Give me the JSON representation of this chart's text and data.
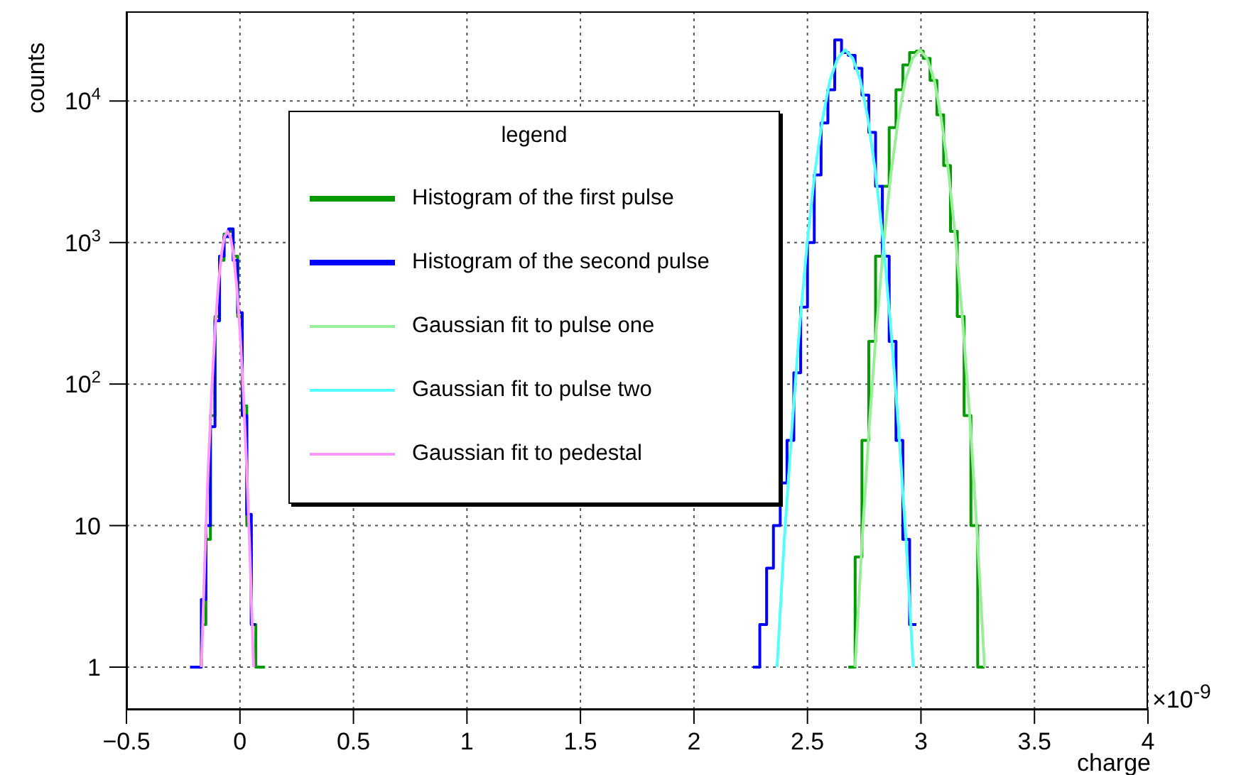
{
  "chart_data": {
    "type": "line",
    "xlabel": "charge",
    "ylabel": "counts",
    "legend_title": "legend",
    "annotations": [
      "×10$^{-9}$"
    ],
    "xlim": [
      -0.5,
      4
    ],
    "xticks": [
      {
        "value": -0.5,
        "label": "−0.5"
      },
      0,
      0.5,
      1,
      1.5,
      2,
      2.5,
      3,
      3.5,
      4
    ],
    "ylim": [
      0.5,
      43000
    ],
    "yticks": [
      1,
      10,
      {
        "value": 100,
        "label": "10$^{2}$"
      },
      {
        "value": 1000,
        "label": "10$^{3}$"
      },
      {
        "value": 10000,
        "label": "10$^{4}$"
      }
    ],
    "log": "y",
    "grid": true,
    "legend": "top left",
    "series": [
      {
        "name": "Histogram of the first pulse",
        "type": "step",
        "color": "#009900",
        "x": [
          -0.17,
          -0.15,
          -0.13,
          -0.11,
          -0.09,
          -0.07,
          -0.05,
          -0.03,
          -0.01,
          0.01,
          0.03,
          0.05,
          0.07,
          0.11,
          1.0,
          2.68,
          2.71,
          2.74,
          2.77,
          2.8,
          2.83,
          2.86,
          2.89,
          2.92,
          2.95,
          2.98,
          3.01,
          3.04,
          3.07,
          3.1,
          3.13,
          3.16,
          3.19,
          3.22,
          3.25,
          3.28
        ],
        "values": [
          2,
          8,
          60,
          300,
          750,
          1150,
          1200,
          800,
          300,
          70,
          10,
          2,
          1,
          1,
          null,
          1,
          6,
          40,
          200,
          800,
          2500,
          6500,
          12000,
          18000,
          22000,
          22500,
          20000,
          14000,
          8000,
          3500,
          1200,
          300,
          60,
          10,
          1,
          1
        ]
      },
      {
        "name": "Histogram of the second pulse",
        "type": "step",
        "color": "#0000ff",
        "x": [
          -0.22,
          -0.17,
          -0.15,
          -0.13,
          -0.11,
          -0.09,
          -0.07,
          -0.05,
          -0.03,
          -0.01,
          0.01,
          0.03,
          0.05,
          0.07,
          1.0,
          2.26,
          2.29,
          2.32,
          2.35,
          2.38,
          2.41,
          2.44,
          2.47,
          2.5,
          2.53,
          2.56,
          2.59,
          2.62,
          2.65,
          2.68,
          2.71,
          2.74,
          2.77,
          2.8,
          2.83,
          2.86,
          2.89,
          2.92,
          2.95,
          2.98
        ],
        "values": [
          1,
          3,
          10,
          50,
          280,
          800,
          1100,
          1250,
          750,
          320,
          60,
          12,
          2,
          2,
          null,
          1,
          2,
          5,
          10,
          20,
          40,
          120,
          350,
          1000,
          3000,
          7000,
          12000,
          27000,
          22000,
          21000,
          17000,
          11000,
          6000,
          2500,
          800,
          200,
          40,
          8,
          2,
          2
        ]
      },
      {
        "name": "Gaussian fit to pulse one",
        "type": "line",
        "color": "#99ee99",
        "x": [
          2.71,
          2.741,
          2.772,
          2.804,
          2.836,
          2.868,
          2.9,
          2.931,
          2.963,
          2.995,
          3.027,
          3.059,
          3.09,
          3.122,
          3.154,
          3.186,
          3.218,
          3.249,
          3.28
        ],
        "values": [
          1,
          8,
          50,
          250,
          1000,
          3100,
          7400,
          14000,
          20000,
          23000,
          20000,
          14000,
          7400,
          3100,
          1000,
          250,
          50,
          8,
          1
        ]
      },
      {
        "name": "Gaussian fit to pulse two",
        "type": "line",
        "color": "#55ffff",
        "x": [
          2.366,
          2.398,
          2.432,
          2.465,
          2.499,
          2.532,
          2.566,
          2.599,
          2.633,
          2.666,
          2.7,
          2.733,
          2.767,
          2.8,
          2.834,
          2.867,
          2.901,
          2.934,
          2.966
        ],
        "values": [
          1,
          8,
          50,
          250,
          1000,
          3100,
          7400,
          14000,
          20000,
          23000,
          20000,
          14000,
          7400,
          3100,
          1000,
          250,
          50,
          8,
          1
        ]
      },
      {
        "name": "Gaussian fit to pedestal",
        "type": "line",
        "color": "#ff99ff",
        "x": [
          -0.17,
          -0.155,
          -0.14,
          -0.125,
          -0.11,
          -0.095,
          -0.08,
          -0.068,
          -0.055,
          -0.042,
          -0.03,
          -0.015,
          0,
          0.015,
          0.03,
          0.045,
          0.06
        ],
        "values": [
          1,
          5.6,
          25,
          86,
          236,
          508,
          858,
          1096,
          1200,
          1096,
          858,
          508,
          236,
          86,
          25,
          5.6,
          1
        ]
      }
    ]
  }
}
